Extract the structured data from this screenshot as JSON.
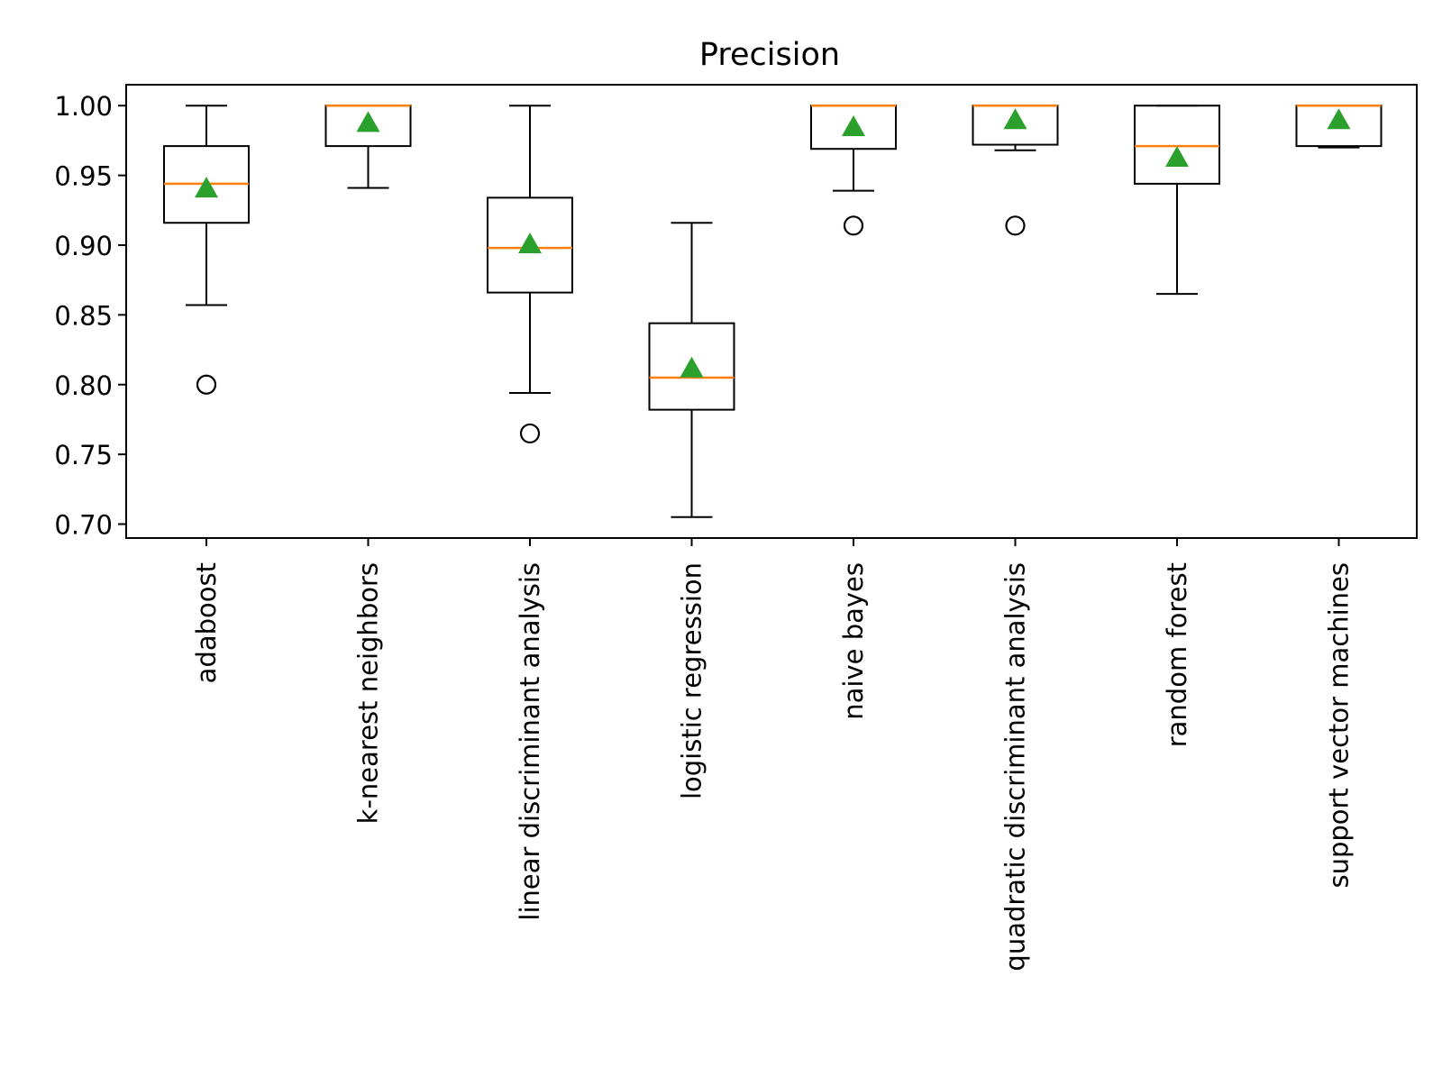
{
  "chart_data": {
    "type": "box",
    "title": "Precision",
    "xlabel": "",
    "ylabel": "",
    "ylim": [
      0.69,
      1.015
    ],
    "yticks": [
      0.7,
      0.75,
      0.8,
      0.85,
      0.9,
      0.95,
      1.0
    ],
    "ytick_labels": [
      "0.70",
      "0.75",
      "0.80",
      "0.85",
      "0.90",
      "0.95",
      "1.00"
    ],
    "grid": false,
    "legend": "none",
    "categories": [
      "adaboost",
      "k-nearest neighbors",
      "linear discriminant analysis",
      "logistic regression",
      "naive bayes",
      "quadratic discriminant analysis",
      "random forest",
      "support vector machines"
    ],
    "boxes": [
      {
        "whisker_low": 0.857,
        "q1": 0.916,
        "median": 0.944,
        "q3": 0.971,
        "whisker_high": 1.0,
        "mean": 0.94,
        "outliers": [
          0.8
        ]
      },
      {
        "whisker_low": 0.941,
        "q1": 0.971,
        "median": 1.0,
        "q3": 1.0,
        "whisker_high": 1.0,
        "mean": 0.987,
        "outliers": []
      },
      {
        "whisker_low": 0.794,
        "q1": 0.866,
        "median": 0.898,
        "q3": 0.934,
        "whisker_high": 1.0,
        "mean": 0.9,
        "outliers": [
          0.765
        ]
      },
      {
        "whisker_low": 0.705,
        "q1": 0.782,
        "median": 0.805,
        "q3": 0.844,
        "whisker_high": 0.916,
        "mean": 0.811,
        "outliers": []
      },
      {
        "whisker_low": 0.939,
        "q1": 0.969,
        "median": 1.0,
        "q3": 1.0,
        "whisker_high": 1.0,
        "mean": 0.984,
        "outliers": [
          0.914
        ]
      },
      {
        "whisker_low": 0.968,
        "q1": 0.972,
        "median": 1.0,
        "q3": 1.0,
        "whisker_high": 1.0,
        "mean": 0.989,
        "outliers": [
          0.914
        ]
      },
      {
        "whisker_low": 0.865,
        "q1": 0.944,
        "median": 0.971,
        "q3": 1.0,
        "whisker_high": 1.0,
        "mean": 0.962,
        "outliers": []
      },
      {
        "whisker_low": 0.97,
        "q1": 0.971,
        "median": 1.0,
        "q3": 1.0,
        "whisker_high": 1.0,
        "mean": 0.989,
        "outliers": []
      }
    ],
    "colors": {
      "box": "#000000",
      "median": "#ff7f0e",
      "mean_marker": "#2ca02c",
      "outlier": "#000000"
    }
  }
}
